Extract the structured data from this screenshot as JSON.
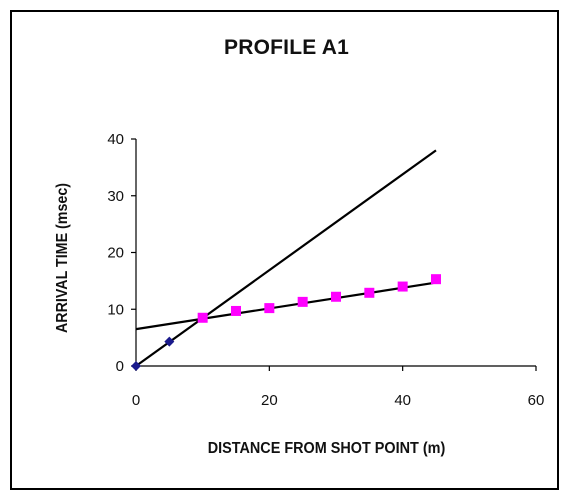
{
  "chart_data": {
    "type": "scatter",
    "title": "PROFILE A1",
    "xlabel": "DISTANCE FROM SHOT POINT (m)",
    "ylabel": "ARRIVAL TIME (msec)",
    "xlim": [
      0,
      60
    ],
    "ylim": [
      0,
      40
    ],
    "x_ticks": [
      "0",
      "20",
      "40",
      "60"
    ],
    "y_ticks": [
      "0",
      "10",
      "20",
      "30",
      "40"
    ],
    "grid": false,
    "legend": "none",
    "series": [
      {
        "marker": "diamond",
        "color": "#1a1a8c",
        "points": [
          [
            0,
            0
          ],
          [
            5,
            4.3
          ]
        ]
      },
      {
        "marker": "square",
        "color": "#ff00ff",
        "points": [
          [
            10,
            8.5
          ],
          [
            15,
            9.7
          ],
          [
            20,
            10.2
          ],
          [
            25,
            11.3
          ],
          [
            30,
            12.2
          ],
          [
            35,
            12.9
          ],
          [
            40,
            14.0
          ],
          [
            45,
            15.3
          ]
        ]
      }
    ],
    "fit_lines": [
      {
        "color": "#000000",
        "from": [
          0,
          0
        ],
        "to": [
          45,
          38
        ]
      },
      {
        "color": "#000000",
        "from": [
          0,
          6.5
        ],
        "to": [
          45,
          14.7
        ]
      }
    ]
  }
}
